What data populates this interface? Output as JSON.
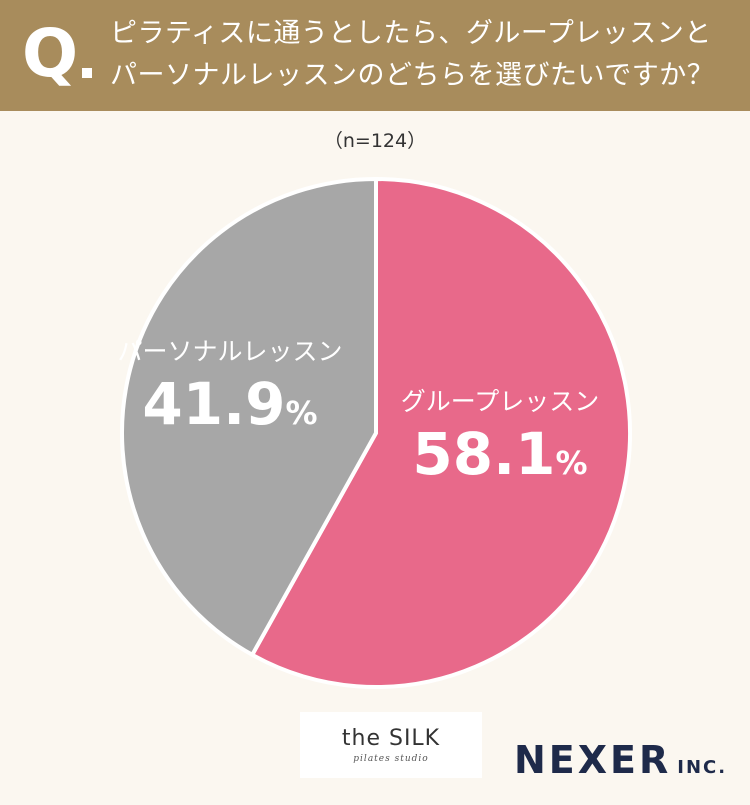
{
  "question": {
    "mark": "Q",
    "line1": "ピラティスに通うとしたら、グループレッスンと",
    "line2": "パーソナルレッスンのどちらを選びたいですか？"
  },
  "sample_note": "（n=124）",
  "chart_data": {
    "type": "pie",
    "title": "",
    "slices": [
      {
        "label": "グループレッスン",
        "value": 58.1,
        "value_text": "58.1",
        "unit": "%",
        "color": "#e8698a"
      },
      {
        "label": "パーソナルレッスン",
        "value": 41.9,
        "value_text": "41.9",
        "unit": "%",
        "color": "#a7a7a7"
      }
    ],
    "start": "12 o'clock",
    "direction": "clockwise",
    "separator_color": "#ffffff"
  },
  "logos": {
    "silk_name": "the SILK",
    "silk_sub": "pilates studio",
    "nexer_name": "NEXER",
    "nexer_inc": "INC."
  },
  "colors": {
    "header_bg": "#a88c5c",
    "page_bg": "#fbf7f0",
    "nexer_text": "#1e2a4a"
  }
}
